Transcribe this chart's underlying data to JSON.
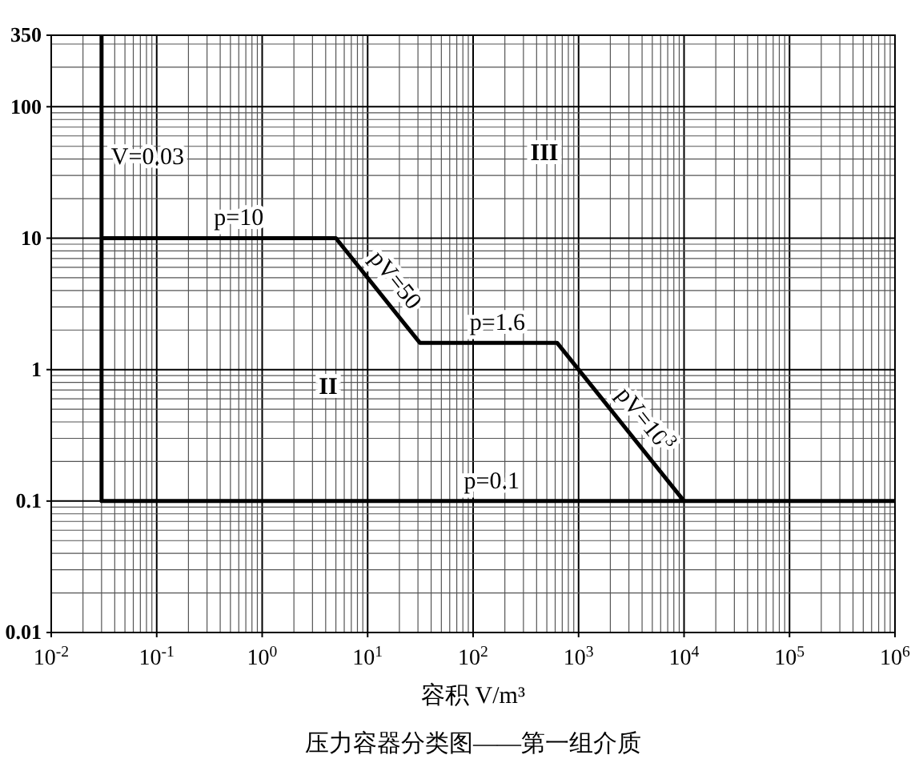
{
  "chart_data": {
    "type": "line",
    "title": "压力容器分类图——第一组介质",
    "xlabel": "容积 V/m³",
    "log": "xy",
    "grid": true,
    "marker": "none",
    "line_style": "solid",
    "xlim": [
      0.01,
      1000000
    ],
    "xticks": [
      {
        "value": 0.01,
        "label": "10$^{-2}$"
      },
      {
        "value": 0.1,
        "label": "10$^{-1}$"
      },
      {
        "value": 1,
        "label": "10$^{0}$"
      },
      {
        "value": 10,
        "label": "10$^{1}$"
      },
      {
        "value": 100,
        "label": "10$^{2}$"
      },
      {
        "value": 1000,
        "label": "10$^{3}$"
      },
      {
        "value": 10000,
        "label": "10$^{4}$"
      },
      {
        "value": 100000,
        "label": "10$^{5}$"
      },
      {
        "value": 1000000,
        "label": "10$^{6}$"
      }
    ],
    "ylim": [
      0.01,
      350
    ],
    "yticks": [
      0.01,
      0.1,
      1,
      10,
      100,
      350
    ],
    "series": [
      {
        "color": "#000000",
        "x": [
          0.03,
          0.03,
          1000000
        ],
        "values": [
          350,
          0.1,
          0.1
        ]
      },
      {
        "color": "#000000",
        "x": [
          0.03,
          5,
          31.25,
          625,
          10000
        ],
        "values": [
          10,
          10,
          1.6,
          1.6,
          0.1
        ]
      }
    ],
    "annotations": [
      {
        "text": "V=0.03",
        "x": 0.03,
        "y": 40
      },
      {
        "text": "p=10",
        "x": 0.6,
        "y": 10
      },
      {
        "text": "pV=50",
        "x": 13,
        "y": 3.85
      },
      {
        "text": "p=1.6",
        "x": 170,
        "y": 1.6
      },
      {
        "text": "pV=10$^{3}$",
        "x": 3000,
        "y": 0.333
      },
      {
        "text": "p=0.1",
        "x": 150,
        "y": 0.1
      },
      "II",
      "III"
    ]
  }
}
